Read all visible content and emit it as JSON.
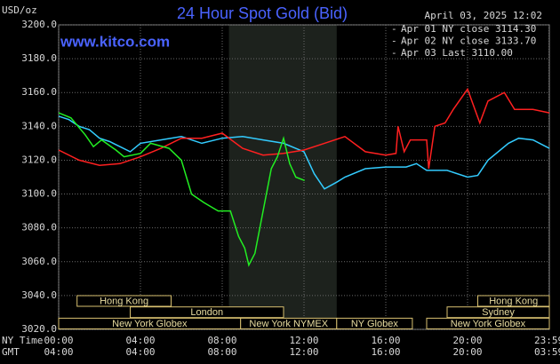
{
  "chart_data": {
    "type": "line",
    "title": "24 Hour Spot Gold (Bid)",
    "y_unit": "USD/oz",
    "timestamp": "April 03, 2025 12:02",
    "source": "www.kitco.com",
    "x_axis_label": "NY Time",
    "x2_axis_label": "GMT",
    "xlim": [
      0,
      24
    ],
    "ylim": [
      3020,
      3200
    ],
    "yticks": [
      {
        "value": 3020,
        "label": "3020.0"
      },
      {
        "value": 3040,
        "label": "3040.0"
      },
      {
        "value": 3060,
        "label": "3060.0"
      },
      {
        "value": 3080,
        "label": "3080.0"
      },
      {
        "value": 3100,
        "label": "3100.0"
      },
      {
        "value": 3120,
        "label": "3120.0"
      },
      {
        "value": 3140,
        "label": "3140.0"
      },
      {
        "value": 3160,
        "label": "3160.0"
      },
      {
        "value": 3180,
        "label": "3180.0"
      },
      {
        "value": 3200,
        "label": "3200.0"
      }
    ],
    "xticks": [
      {
        "value": 0,
        "label": "00:00"
      },
      {
        "value": 4,
        "label": "04:00"
      },
      {
        "value": 8,
        "label": "08:00"
      },
      {
        "value": 12,
        "label": "12:00"
      },
      {
        "value": 16,
        "label": "16:00"
      },
      {
        "value": 20,
        "label": "20:00"
      },
      {
        "value": 23.98,
        "label": "23:59"
      }
    ],
    "x2tick_labels": [
      "04:00",
      "08:00",
      "12:00",
      "16:00",
      "20:00",
      "03:59"
    ],
    "grid": true,
    "shaded": [
      8.33,
      13.6
    ],
    "sessions": [
      {
        "label": "Hong Kong",
        "row": 0,
        "start": 0.9,
        "end": 5.5
      },
      {
        "label": "Hong Kong",
        "row": 0,
        "start": 20.5,
        "end": 24
      },
      {
        "label": "London",
        "row": 1,
        "start": 3.5,
        "end": 11
      },
      {
        "label": "Sydney",
        "row": 1,
        "start": 19,
        "end": 24
      },
      {
        "label": "New York Globex",
        "row": 2,
        "start": 0,
        "end": 8.9
      },
      {
        "label": "New York NYMEX",
        "row": 2,
        "start": 8.9,
        "end": 13.6
      },
      {
        "label": "NY Globex",
        "row": 2,
        "start": 13.6,
        "end": 17.3
      },
      {
        "label": "New York Globex",
        "row": 2,
        "start": 18,
        "end": 24
      }
    ],
    "series": [
      {
        "name": "Apr 01 NY close 3114.30",
        "color": "#33ccff",
        "x": [
          0,
          0.5,
          1,
          1.5,
          2,
          2.5,
          3,
          3.5,
          4,
          5,
          6,
          7,
          8,
          9,
          10,
          11,
          12,
          12.5,
          13,
          13.6,
          14,
          15,
          16,
          17,
          17.5,
          18,
          19,
          20,
          20.5,
          21,
          22,
          22.5,
          23.2,
          24
        ],
        "values": [
          3146,
          3144,
          3140,
          3138,
          3133,
          3131,
          3128,
          3125,
          3130,
          3132,
          3134,
          3130,
          3133,
          3134,
          3132,
          3130,
          3125,
          3112,
          3103,
          3107,
          3110,
          3115,
          3116,
          3116,
          3118,
          3114,
          3114,
          3110,
          3111,
          3120,
          3130,
          3133,
          3132,
          3127
        ]
      },
      {
        "name": "Apr 02 NY close 3133.70",
        "color": "#ff2020",
        "x": [
          0,
          1,
          2,
          3,
          4,
          5,
          6,
          7,
          8,
          9,
          10,
          11,
          12,
          13,
          14,
          15,
          16,
          16.5,
          16.6,
          16.9,
          17.2,
          18,
          18.1,
          18.4,
          18.9,
          19.3,
          20,
          20.6,
          21,
          21.8,
          22.3,
          23.2,
          24
        ],
        "values": [
          3126,
          3120,
          3117,
          3118,
          3122,
          3127,
          3133,
          3133,
          3136,
          3127,
          3123,
          3124,
          3126,
          3130,
          3134,
          3125,
          3123,
          3124,
          3140,
          3125,
          3132,
          3132,
          3115,
          3140,
          3142,
          3150,
          3162,
          3142,
          3155,
          3160,
          3150,
          3150,
          3148
        ]
      },
      {
        "name": "Apr 03 Last 3110.00",
        "color": "#22ee22",
        "x": [
          0,
          0.6,
          1.3,
          1.7,
          2.1,
          2.8,
          3.2,
          4,
          4.5,
          5.4,
          6,
          6.5,
          7.1,
          7.8,
          8.4,
          8.8,
          9.1,
          9.3,
          9.6,
          10,
          10.4,
          10.7,
          11,
          11.3,
          11.6,
          12.03
        ],
        "values": [
          3148,
          3145,
          3135,
          3128,
          3132,
          3126,
          3122,
          3124,
          3130,
          3127,
          3120,
          3100,
          3095,
          3090,
          3090,
          3075,
          3068,
          3058,
          3065,
          3090,
          3115,
          3122,
          3133,
          3118,
          3110,
          3108
        ]
      }
    ]
  }
}
